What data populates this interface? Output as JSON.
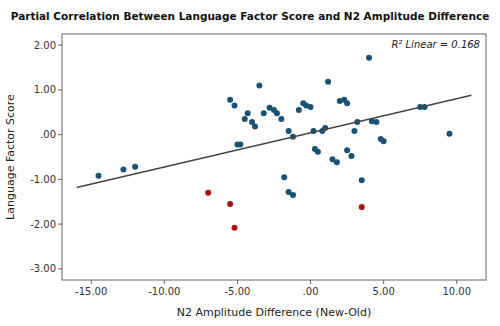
{
  "chart_data": {
    "type": "scatter",
    "title": "Partial Correlation Between Language Factor Score and N2 Amplitude Difference",
    "x_label": "N2 Amplitude Difference (New-Old)",
    "y_label": "Language Factor Score",
    "annotation": "R² Linear = 0.168",
    "xlim": [
      -17,
      12
    ],
    "ylim": [
      -3.25,
      2.25
    ],
    "xticks": [
      {
        "value": -15,
        "label": "-15.00"
      },
      {
        "value": -10,
        "label": "-10.00"
      },
      {
        "value": -5,
        "label": "-5.00"
      },
      {
        "value": 0,
        "label": ".00"
      },
      {
        "value": 5,
        "label": "5.00"
      },
      {
        "value": 10,
        "label": "10.00"
      }
    ],
    "yticks": [
      {
        "value": -3.0,
        "label": "-3.00"
      },
      {
        "value": -2.0,
        "label": "-2.00"
      },
      {
        "value": -1.0,
        "label": "-1.00"
      },
      {
        "value": 0.0,
        "label": ".00"
      },
      {
        "value": 1.0,
        "label": "1.00"
      },
      {
        "value": 2.0,
        "label": "2.00"
      }
    ],
    "grid": false,
    "series": [
      {
        "type": "scatter",
        "color": "#1a5276",
        "x": [
          -14.5,
          -12.8,
          -12.0,
          -5.5,
          -5.2,
          -5.0,
          -4.8,
          -4.5,
          -4.3,
          -4.0,
          -3.8,
          -3.5,
          -3.2,
          -2.8,
          -2.5,
          -2.3,
          -2.0,
          -1.8,
          -1.5,
          -1.2,
          -0.8,
          -0.5,
          -0.3,
          0.0,
          0.2,
          0.5,
          0.8,
          1.0,
          1.2,
          1.5,
          1.8,
          2.0,
          2.3,
          2.5,
          2.8,
          3.0,
          3.2,
          3.5,
          4.0,
          4.2,
          4.5,
          4.8,
          5.0,
          7.5,
          7.8,
          9.5,
          -1.5,
          -1.2,
          0.3,
          2.5
        ],
        "values": [
          -0.92,
          -0.78,
          -0.72,
          0.78,
          0.65,
          -0.22,
          -0.22,
          0.35,
          0.48,
          0.28,
          0.18,
          1.1,
          0.48,
          0.6,
          0.55,
          0.48,
          0.35,
          -0.95,
          0.08,
          -0.05,
          0.55,
          0.7,
          0.65,
          0.62,
          0.08,
          -0.38,
          0.08,
          0.15,
          1.18,
          -0.55,
          -0.62,
          0.75,
          0.78,
          0.7,
          -0.48,
          0.08,
          0.28,
          -1.02,
          1.72,
          0.3,
          0.28,
          -0.1,
          -0.15,
          0.62,
          0.62,
          0.02,
          -1.28,
          -1.35,
          -0.32,
          -0.35
        ]
      },
      {
        "type": "scatter",
        "color": "#aa1111",
        "x": [
          -7.0,
          -5.5,
          -5.2,
          3.5
        ],
        "values": [
          -1.3,
          -1.55,
          -2.08,
          -1.62
        ]
      },
      {
        "type": "line",
        "color": "#444444",
        "x": [
          -16,
          11
        ],
        "values": [
          -1.18,
          0.88
        ]
      }
    ]
  }
}
